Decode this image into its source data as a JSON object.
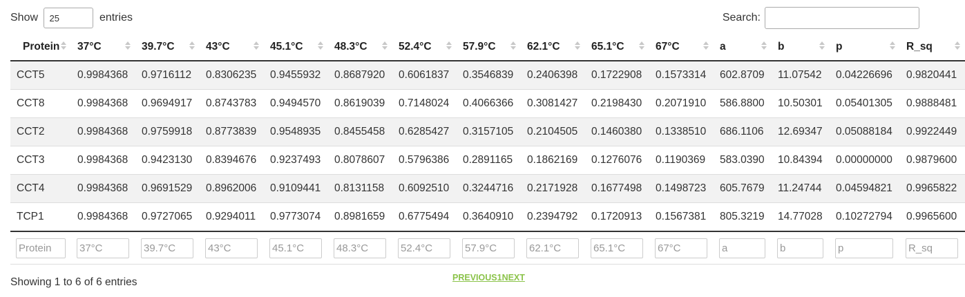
{
  "length": {
    "prefix": "Show",
    "value": "25",
    "suffix": "entries"
  },
  "search": {
    "label": "Search:",
    "value": ""
  },
  "table": {
    "columns": [
      "Protein",
      "37°C",
      "39.7°C",
      "43°C",
      "45.1°C",
      "48.3°C",
      "52.4°C",
      "57.9°C",
      "62.1°C",
      "65.1°C",
      "67°C",
      "a",
      "b",
      "p",
      "R_sq"
    ],
    "rows": [
      [
        "CCT5",
        "0.9984368",
        "0.9716112",
        "0.8306235",
        "0.9455932",
        "0.8687920",
        "0.6061837",
        "0.3546839",
        "0.2406398",
        "0.1722908",
        "0.1573314",
        "602.8709",
        "11.07542",
        "0.04226696",
        "0.9820441"
      ],
      [
        "CCT8",
        "0.9984368",
        "0.9694917",
        "0.8743783",
        "0.9494570",
        "0.8619039",
        "0.7148024",
        "0.4066366",
        "0.3081427",
        "0.2198430",
        "0.2071910",
        "586.8800",
        "10.50301",
        "0.05401305",
        "0.9888481"
      ],
      [
        "CCT2",
        "0.9984368",
        "0.9759918",
        "0.8773839",
        "0.9548935",
        "0.8455458",
        "0.6285427",
        "0.3157105",
        "0.2104505",
        "0.1460380",
        "0.1338510",
        "686.1106",
        "12.69347",
        "0.05088184",
        "0.9922449"
      ],
      [
        "CCT3",
        "0.9984368",
        "0.9423130",
        "0.8394676",
        "0.9237493",
        "0.8078607",
        "0.5796386",
        "0.2891165",
        "0.1862169",
        "0.1276076",
        "0.1190369",
        "583.0390",
        "10.84394",
        "0.00000000",
        "0.9879600"
      ],
      [
        "CCT4",
        "0.9984368",
        "0.9691529",
        "0.8962006",
        "0.9109441",
        "0.8131158",
        "0.6092510",
        "0.3244716",
        "0.2171928",
        "0.1677498",
        "0.1498723",
        "605.7679",
        "11.24744",
        "0.04594821",
        "0.9965822"
      ],
      [
        "TCP1",
        "0.9984368",
        "0.9727065",
        "0.9294011",
        "0.9773074",
        "0.8981659",
        "0.6775494",
        "0.3640910",
        "0.2394792",
        "0.1720913",
        "0.1567381",
        "805.3219",
        "14.77028",
        "0.10272794",
        "0.9965600"
      ]
    ],
    "filter_placeholders": [
      "Protein",
      "37°C",
      "39.7°C",
      "43°C",
      "45.1°C",
      "48.3°C",
      "52.4°C",
      "57.9°C",
      "62.1°C",
      "65.1°C",
      "67°C",
      "a",
      "b",
      "p",
      "R_sq"
    ]
  },
  "info": "Showing 1 to 6 of 6 entries",
  "pagination": {
    "previous": "PREVIOUS",
    "page": "1",
    "next": "NEXT"
  },
  "colors": {
    "link": "#8bc34a",
    "stripe": "#f2f2f2",
    "border": "#333333"
  }
}
